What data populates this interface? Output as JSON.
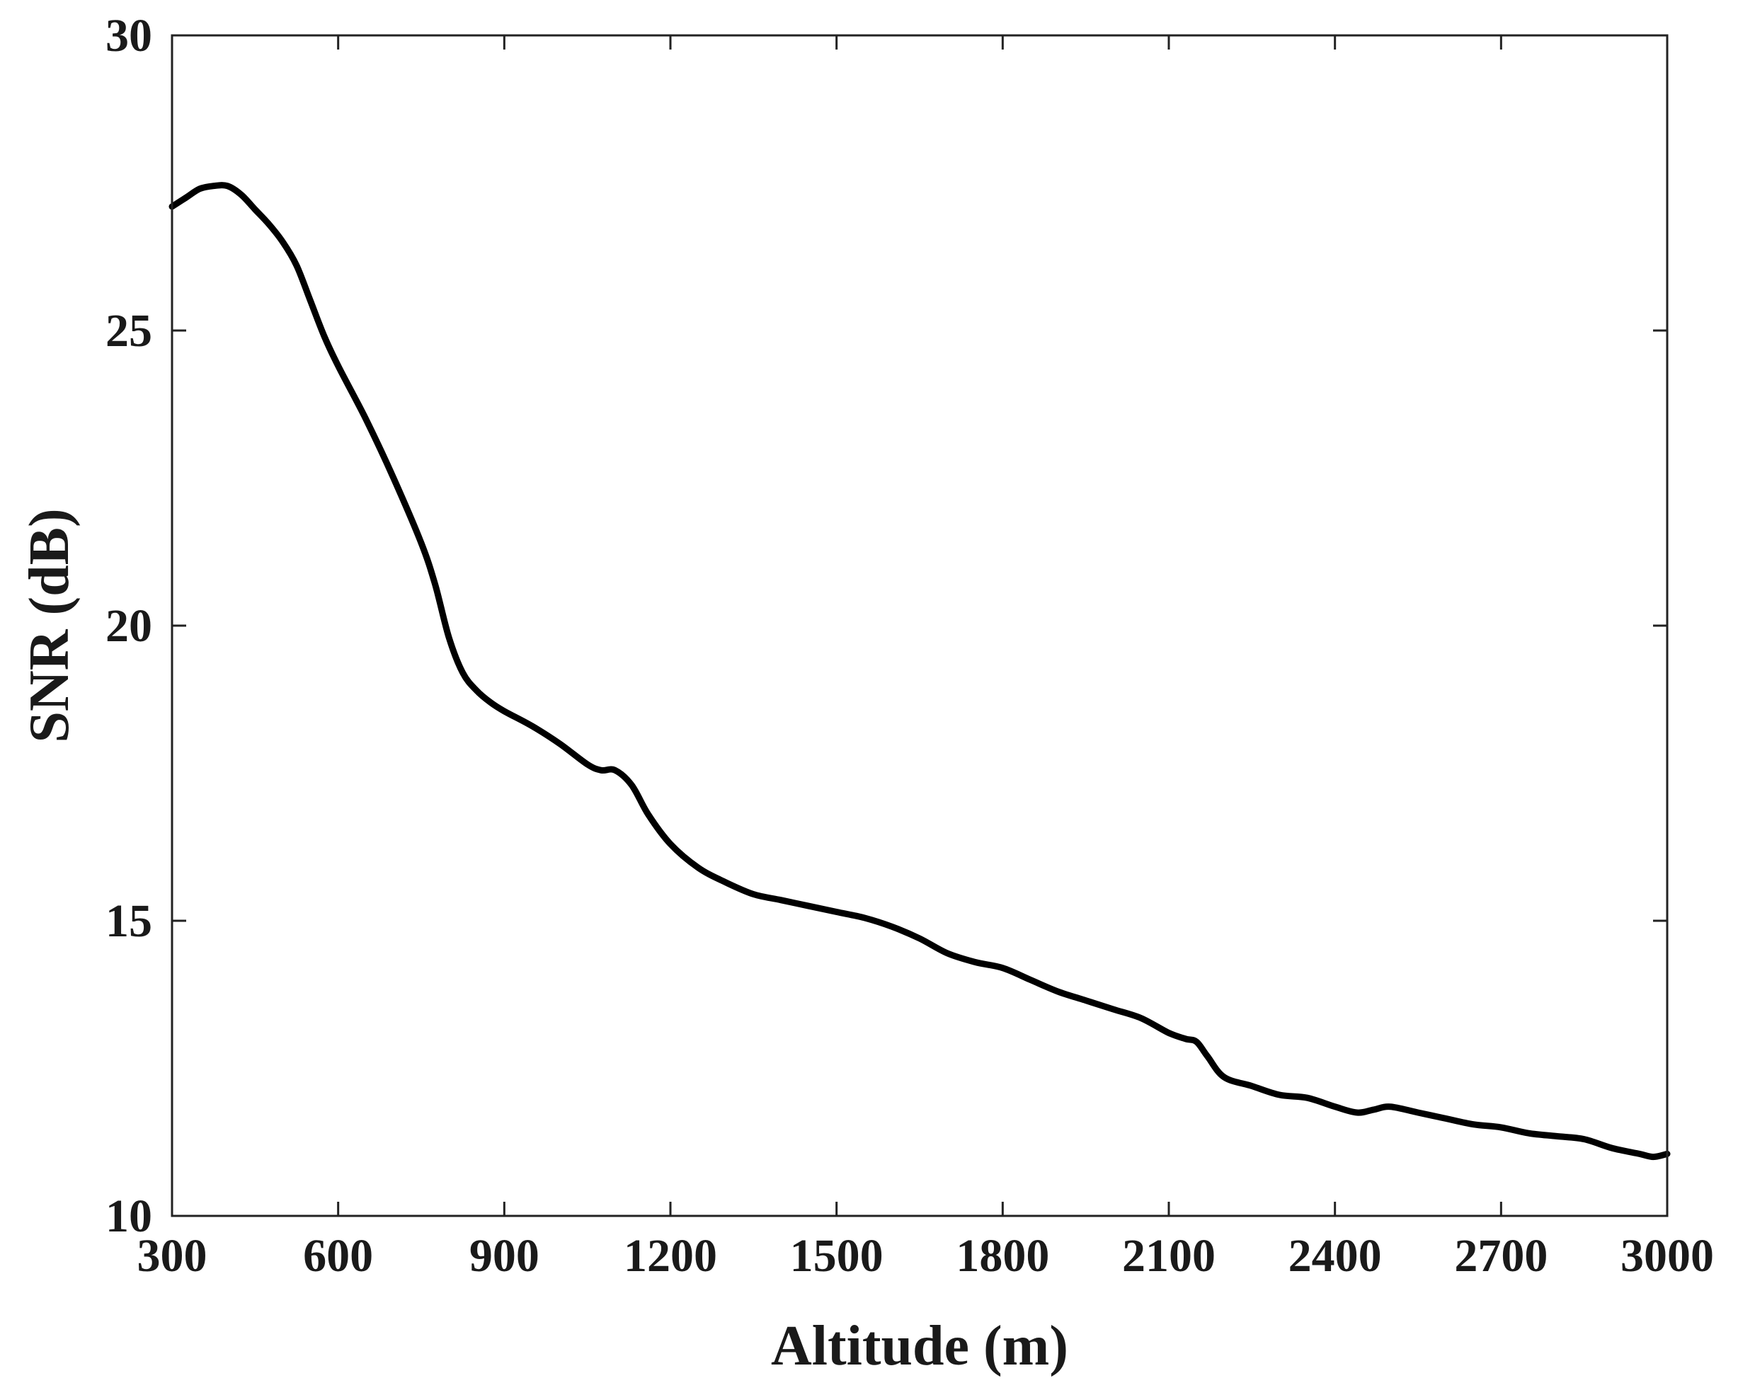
{
  "chart_data": {
    "type": "line",
    "title": "",
    "xlabel": "Altitude (m)",
    "ylabel": "SNR (dB)",
    "xlim": [
      300,
      3000
    ],
    "ylim": [
      10,
      30
    ],
    "xticks": [
      300,
      600,
      900,
      1200,
      1500,
      1800,
      2100,
      2400,
      2700,
      3000
    ],
    "yticks": [
      10,
      15,
      20,
      25,
      30
    ],
    "xtick_labels": [
      "300",
      "600",
      "900",
      "1200",
      "1500",
      "1800",
      "2100",
      "2400",
      "2700",
      "3000"
    ],
    "ytick_labels": [
      "10",
      "15",
      "20",
      "25",
      "30"
    ],
    "grid": false,
    "line_color": "#000000",
    "series": [
      {
        "x": [
          300,
          325,
          350,
          375,
          400,
          425,
          450,
          475,
          500,
          525,
          550,
          575,
          600,
          650,
          700,
          750,
          775,
          800,
          825,
          850,
          875,
          900,
          950,
          1000,
          1050,
          1075,
          1100,
          1130,
          1160,
          1200,
          1250,
          1300,
          1350,
          1400,
          1450,
          1500,
          1550,
          1600,
          1650,
          1700,
          1750,
          1800,
          1850,
          1900,
          1950,
          2000,
          2050,
          2100,
          2130,
          2150,
          2170,
          2200,
          2250,
          2300,
          2350,
          2400,
          2440,
          2470,
          2500,
          2550,
          2600,
          2650,
          2700,
          2750,
          2800,
          2850,
          2900,
          2950,
          2975,
          3000
        ],
        "y": [
          27.1,
          27.25,
          27.4,
          27.45,
          27.45,
          27.3,
          27.05,
          26.8,
          26.5,
          26.1,
          25.5,
          24.9,
          24.4,
          23.5,
          22.5,
          21.4,
          20.7,
          19.8,
          19.2,
          18.9,
          18.7,
          18.55,
          18.3,
          18.0,
          17.65,
          17.55,
          17.55,
          17.3,
          16.8,
          16.3,
          15.9,
          15.65,
          15.45,
          15.35,
          15.25,
          15.15,
          15.05,
          14.9,
          14.7,
          14.45,
          14.3,
          14.2,
          14.0,
          13.8,
          13.65,
          13.5,
          13.35,
          13.1,
          13.0,
          12.95,
          12.7,
          12.35,
          12.2,
          12.05,
          12.0,
          11.85,
          11.75,
          11.8,
          11.85,
          11.75,
          11.65,
          11.55,
          11.5,
          11.4,
          11.35,
          11.3,
          11.15,
          11.05,
          11.0,
          11.05
        ]
      }
    ]
  }
}
